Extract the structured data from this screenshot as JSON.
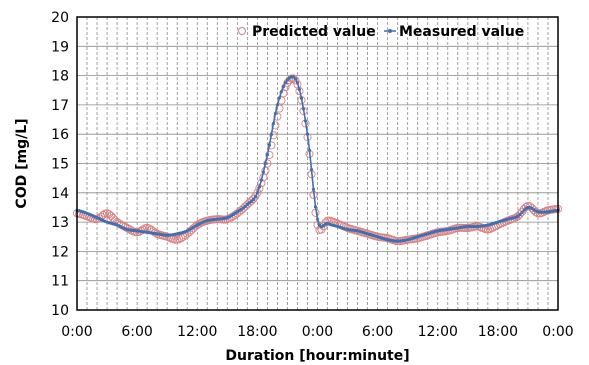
{
  "chart_data": {
    "type": "line",
    "xlabel": "Duration [hour:minute]",
    "ylabel": "COD [mg/L]",
    "x_tick_labels": [
      "0:00",
      "6:00",
      "12:00",
      "18:00",
      "0:00",
      "6:00",
      "12:00",
      "18:00",
      "0:00"
    ],
    "x_ticks_hours": [
      0,
      6,
      12,
      18,
      24,
      30,
      36,
      42,
      48
    ],
    "xlim": [
      0,
      48
    ],
    "ylim": [
      10,
      20
    ],
    "y_ticks": [
      10,
      11,
      12,
      13,
      14,
      15,
      16,
      17,
      18,
      19,
      20
    ],
    "grid": true,
    "legend_position": "top-right",
    "series": [
      {
        "name": "Predicted value",
        "marker": "open-circle",
        "color": "#d98080",
        "x": [
          0,
          1,
          2,
          3,
          4,
          5,
          6,
          7,
          8,
          9,
          10,
          11,
          12,
          13,
          14,
          15,
          16,
          17,
          18,
          19,
          20,
          21,
          22,
          23,
          24,
          25,
          26,
          27,
          28,
          29,
          30,
          31,
          32,
          33,
          34,
          35,
          36,
          37,
          38,
          39,
          40,
          41,
          42,
          43,
          44,
          45,
          46,
          47,
          48
        ],
        "y": [
          13.3,
          13.2,
          13.1,
          13.3,
          13.0,
          12.8,
          12.65,
          12.8,
          12.6,
          12.5,
          12.4,
          12.6,
          12.9,
          13.05,
          13.1,
          13.1,
          13.3,
          13.6,
          14.0,
          15.0,
          16.6,
          17.75,
          17.7,
          15.9,
          12.9,
          13.05,
          12.95,
          12.8,
          12.7,
          12.6,
          12.5,
          12.45,
          12.35,
          12.4,
          12.45,
          12.55,
          12.65,
          12.7,
          12.8,
          12.8,
          12.85,
          12.75,
          12.9,
          13.05,
          13.2,
          13.55,
          13.3,
          13.4,
          13.45
        ]
      },
      {
        "name": "Measured value",
        "marker": "dot-line",
        "color": "#3f6fb5",
        "x": [
          0,
          1,
          2,
          3,
          4,
          5,
          6,
          7,
          8,
          9,
          10,
          11,
          12,
          13,
          14,
          15,
          16,
          17,
          18,
          19,
          20,
          21,
          22,
          23,
          24,
          25,
          26,
          27,
          28,
          29,
          30,
          31,
          32,
          33,
          34,
          35,
          36,
          37,
          38,
          39,
          40,
          41,
          42,
          43,
          44,
          45,
          46,
          47,
          48
        ],
        "y": [
          13.4,
          13.3,
          13.15,
          13.0,
          12.9,
          12.75,
          12.7,
          12.65,
          12.6,
          12.55,
          12.6,
          12.7,
          12.9,
          13.05,
          13.1,
          13.15,
          13.35,
          13.6,
          14.0,
          15.3,
          17.0,
          17.85,
          17.75,
          16.0,
          13.1,
          12.95,
          12.85,
          12.75,
          12.7,
          12.6,
          12.5,
          12.4,
          12.35,
          12.4,
          12.5,
          12.6,
          12.7,
          12.75,
          12.8,
          12.85,
          12.85,
          12.9,
          13.0,
          13.1,
          13.2,
          13.5,
          13.35,
          13.35,
          13.4
        ]
      }
    ]
  }
}
